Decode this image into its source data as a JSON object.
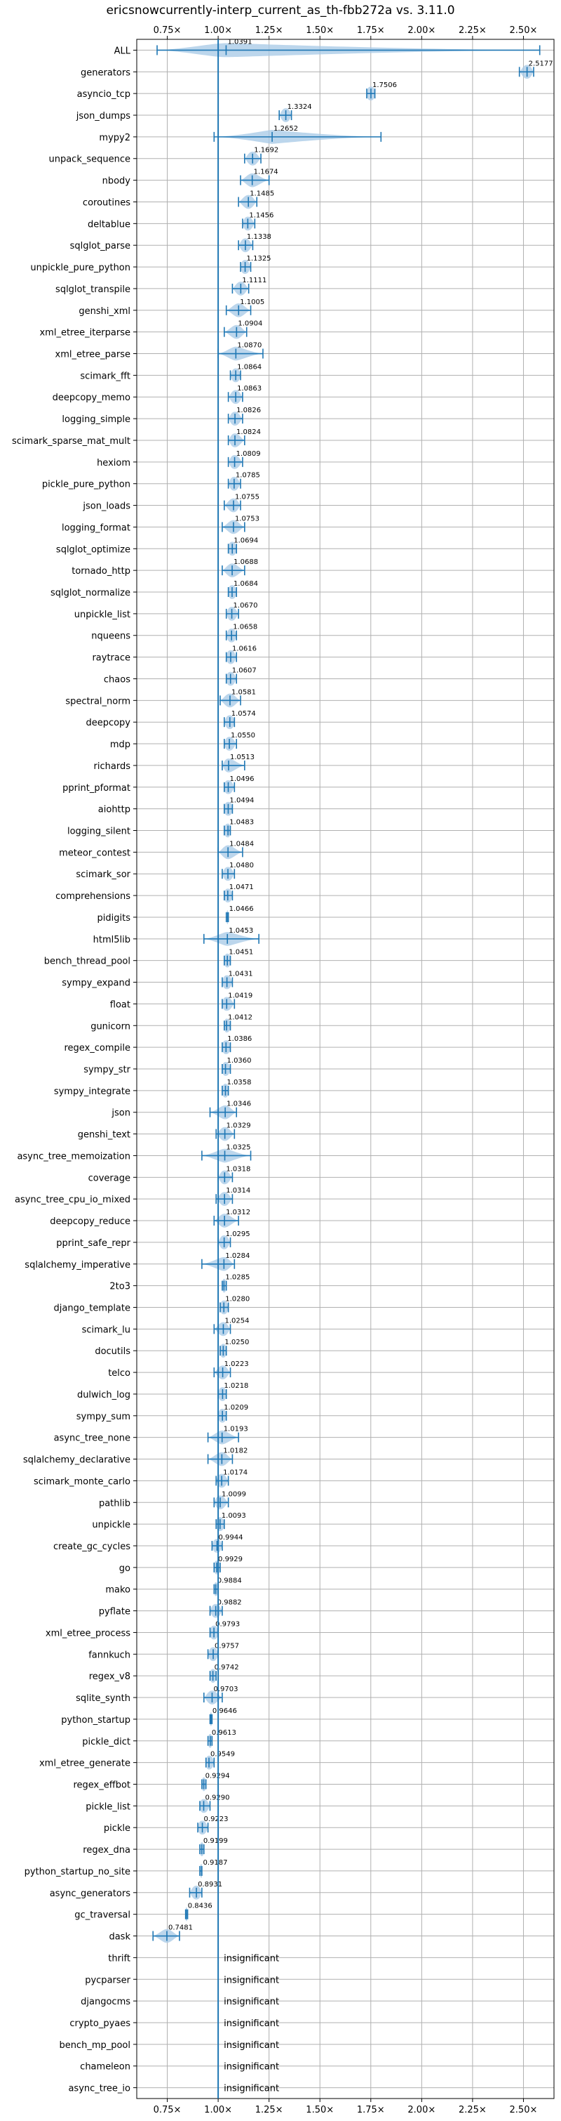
{
  "chart_data": {
    "type": "violin",
    "title": "ericsnowcurrently-interp_current_as_th-fbb272a vs. 3.11.0",
    "xlim": [
      0.6,
      2.65
    ],
    "xticks": [
      0.75,
      1.0,
      1.25,
      1.5,
      1.75,
      2.0,
      2.25,
      2.5
    ],
    "xtick_labels": [
      "0.75×",
      "1.00×",
      "1.25×",
      "1.50×",
      "1.75×",
      "2.00×",
      "2.25×",
      "2.50×"
    ],
    "reference_line": 1.0,
    "grid": true,
    "colors": {
      "line": "#1f77b4",
      "fill": "#a6c8e6",
      "grid": "#b0b0b0"
    },
    "insignificant_label": "insignificant",
    "rows": [
      {
        "name": "ALL",
        "label": "1.0391",
        "median": 1.0391,
        "min": 0.7,
        "max": 2.58,
        "spread": 0.07
      },
      {
        "name": "generators",
        "label": "2.5177",
        "median": 2.5177,
        "min": 2.48,
        "max": 2.55,
        "spread": 0.02
      },
      {
        "name": "asyncio_tcp",
        "label": "1.7506",
        "median": 1.7506,
        "min": 1.73,
        "max": 1.77,
        "spread": 0.02
      },
      {
        "name": "json_dumps",
        "label": "1.3324",
        "median": 1.3324,
        "min": 1.3,
        "max": 1.36,
        "spread": 0.02
      },
      {
        "name": "mypy2",
        "label": "1.2652",
        "median": 1.2652,
        "min": 0.98,
        "max": 1.8,
        "spread": 0.02
      },
      {
        "name": "unpack_sequence",
        "label": "1.1692",
        "median": 1.1692,
        "min": 1.13,
        "max": 1.21,
        "spread": 0.02
      },
      {
        "name": "nbody",
        "label": "1.1674",
        "median": 1.1674,
        "min": 1.11,
        "max": 1.25,
        "spread": 0.02
      },
      {
        "name": "coroutines",
        "label": "1.1485",
        "median": 1.1485,
        "min": 1.1,
        "max": 1.19,
        "spread": 0.02
      },
      {
        "name": "deltablue",
        "label": "1.1456",
        "median": 1.1456,
        "min": 1.12,
        "max": 1.18,
        "spread": 0.02
      },
      {
        "name": "sqlglot_parse",
        "label": "1.1338",
        "median": 1.1338,
        "min": 1.1,
        "max": 1.17,
        "spread": 0.02
      },
      {
        "name": "unpickle_pure_python",
        "label": "1.1325",
        "median": 1.1325,
        "min": 1.11,
        "max": 1.16,
        "spread": 0.02
      },
      {
        "name": "sqlglot_transpile",
        "label": "1.1111",
        "median": 1.1111,
        "min": 1.07,
        "max": 1.15,
        "spread": 0.02
      },
      {
        "name": "genshi_xml",
        "label": "1.1005",
        "median": 1.1005,
        "min": 1.04,
        "max": 1.16,
        "spread": 0.02
      },
      {
        "name": "xml_etree_iterparse",
        "label": "1.0904",
        "median": 1.0904,
        "min": 1.03,
        "max": 1.14,
        "spread": 0.02
      },
      {
        "name": "xml_etree_parse",
        "label": "1.0870",
        "median": 1.087,
        "min": 1.0,
        "max": 1.22,
        "spread": 0.02
      },
      {
        "name": "scimark_fft",
        "label": "1.0864",
        "median": 1.0864,
        "min": 1.06,
        "max": 1.11,
        "spread": 0.02
      },
      {
        "name": "deepcopy_memo",
        "label": "1.0863",
        "median": 1.0863,
        "min": 1.05,
        "max": 1.12,
        "spread": 0.02
      },
      {
        "name": "logging_simple",
        "label": "1.0826",
        "median": 1.0826,
        "min": 1.05,
        "max": 1.12,
        "spread": 0.02
      },
      {
        "name": "scimark_sparse_mat_mult",
        "label": "1.0824",
        "median": 1.0824,
        "min": 1.05,
        "max": 1.13,
        "spread": 0.02
      },
      {
        "name": "hexiom",
        "label": "1.0809",
        "median": 1.0809,
        "min": 1.05,
        "max": 1.12,
        "spread": 0.02
      },
      {
        "name": "pickle_pure_python",
        "label": "1.0785",
        "median": 1.0785,
        "min": 1.05,
        "max": 1.11,
        "spread": 0.02
      },
      {
        "name": "json_loads",
        "label": "1.0755",
        "median": 1.0755,
        "min": 1.03,
        "max": 1.11,
        "spread": 0.02
      },
      {
        "name": "logging_format",
        "label": "1.0753",
        "median": 1.0753,
        "min": 1.02,
        "max": 1.13,
        "spread": 0.02
      },
      {
        "name": "sqlglot_optimize",
        "label": "1.0694",
        "median": 1.0694,
        "min": 1.05,
        "max": 1.09,
        "spread": 0.02
      },
      {
        "name": "tornado_http",
        "label": "1.0688",
        "median": 1.0688,
        "min": 1.02,
        "max": 1.13,
        "spread": 0.02
      },
      {
        "name": "sqlglot_normalize",
        "label": "1.0684",
        "median": 1.0684,
        "min": 1.05,
        "max": 1.09,
        "spread": 0.02
      },
      {
        "name": "unpickle_list",
        "label": "1.0670",
        "median": 1.067,
        "min": 1.04,
        "max": 1.1,
        "spread": 0.02
      },
      {
        "name": "nqueens",
        "label": "1.0658",
        "median": 1.0658,
        "min": 1.04,
        "max": 1.09,
        "spread": 0.02
      },
      {
        "name": "raytrace",
        "label": "1.0616",
        "median": 1.0616,
        "min": 1.04,
        "max": 1.09,
        "spread": 0.02
      },
      {
        "name": "chaos",
        "label": "1.0607",
        "median": 1.0607,
        "min": 1.04,
        "max": 1.09,
        "spread": 0.02
      },
      {
        "name": "spectral_norm",
        "label": "1.0581",
        "median": 1.0581,
        "min": 1.01,
        "max": 1.11,
        "spread": 0.02
      },
      {
        "name": "deepcopy",
        "label": "1.0574",
        "median": 1.0574,
        "min": 1.03,
        "max": 1.08,
        "spread": 0.02
      },
      {
        "name": "mdp",
        "label": "1.0550",
        "median": 1.055,
        "min": 1.03,
        "max": 1.09,
        "spread": 0.02
      },
      {
        "name": "richards",
        "label": "1.0513",
        "median": 1.0513,
        "min": 1.02,
        "max": 1.13,
        "spread": 0.02
      },
      {
        "name": "pprint_pformat",
        "label": "1.0496",
        "median": 1.0496,
        "min": 1.03,
        "max": 1.08,
        "spread": 0.02
      },
      {
        "name": "aiohttp",
        "label": "1.0494",
        "median": 1.0494,
        "min": 1.03,
        "max": 1.07,
        "spread": 0.02
      },
      {
        "name": "logging_silent",
        "label": "1.0483",
        "median": 1.0483,
        "min": 1.03,
        "max": 1.06,
        "spread": 0.02
      },
      {
        "name": "meteor_contest",
        "label": "1.0484",
        "median": 1.0484,
        "min": 1.0,
        "max": 1.12,
        "spread": 0.02
      },
      {
        "name": "scimark_sor",
        "label": "1.0480",
        "median": 1.048,
        "min": 1.02,
        "max": 1.08,
        "spread": 0.02
      },
      {
        "name": "comprehensions",
        "label": "1.0471",
        "median": 1.0471,
        "min": 1.03,
        "max": 1.07,
        "spread": 0.02
      },
      {
        "name": "pidigits",
        "label": "1.0466",
        "median": 1.0466,
        "min": 1.04,
        "max": 1.05,
        "spread": 0.02
      },
      {
        "name": "html5lib",
        "label": "1.0453",
        "median": 1.0453,
        "min": 0.93,
        "max": 1.2,
        "spread": 0.02
      },
      {
        "name": "bench_thread_pool",
        "label": "1.0451",
        "median": 1.0451,
        "min": 1.03,
        "max": 1.06,
        "spread": 0.02
      },
      {
        "name": "sympy_expand",
        "label": "1.0431",
        "median": 1.0431,
        "min": 1.02,
        "max": 1.07,
        "spread": 0.02
      },
      {
        "name": "float",
        "label": "1.0419",
        "median": 1.0419,
        "min": 1.02,
        "max": 1.08,
        "spread": 0.02
      },
      {
        "name": "gunicorn",
        "label": "1.0412",
        "median": 1.0412,
        "min": 1.03,
        "max": 1.06,
        "spread": 0.02
      },
      {
        "name": "regex_compile",
        "label": "1.0386",
        "median": 1.0386,
        "min": 1.02,
        "max": 1.06,
        "spread": 0.02
      },
      {
        "name": "sympy_str",
        "label": "1.0360",
        "median": 1.036,
        "min": 1.02,
        "max": 1.06,
        "spread": 0.02
      },
      {
        "name": "sympy_integrate",
        "label": "1.0358",
        "median": 1.0358,
        "min": 1.02,
        "max": 1.05,
        "spread": 0.02
      },
      {
        "name": "json",
        "label": "1.0346",
        "median": 1.0346,
        "min": 0.96,
        "max": 1.09,
        "spread": 0.02
      },
      {
        "name": "genshi_text",
        "label": "1.0329",
        "median": 1.0329,
        "min": 0.99,
        "max": 1.08,
        "spread": 0.02
      },
      {
        "name": "async_tree_memoization",
        "label": "1.0325",
        "median": 1.0325,
        "min": 0.92,
        "max": 1.16,
        "spread": 0.02
      },
      {
        "name": "coverage",
        "label": "1.0318",
        "median": 1.0318,
        "min": 1.0,
        "max": 1.07,
        "spread": 0.02
      },
      {
        "name": "async_tree_cpu_io_mixed",
        "label": "1.0314",
        "median": 1.0314,
        "min": 0.99,
        "max": 1.07,
        "spread": 0.02
      },
      {
        "name": "deepcopy_reduce",
        "label": "1.0312",
        "median": 1.0312,
        "min": 0.98,
        "max": 1.1,
        "spread": 0.02
      },
      {
        "name": "pprint_safe_repr",
        "label": "1.0295",
        "median": 1.0295,
        "min": 1.0,
        "max": 1.06,
        "spread": 0.02
      },
      {
        "name": "sqlalchemy_imperative",
        "label": "1.0284",
        "median": 1.0284,
        "min": 0.92,
        "max": 1.08,
        "spread": 0.02
      },
      {
        "name": "2to3",
        "label": "1.0285",
        "median": 1.0285,
        "min": 1.02,
        "max": 1.04,
        "spread": 0.02
      },
      {
        "name": "django_template",
        "label": "1.0280",
        "median": 1.028,
        "min": 1.01,
        "max": 1.05,
        "spread": 0.02
      },
      {
        "name": "scimark_lu",
        "label": "1.0254",
        "median": 1.0254,
        "min": 0.98,
        "max": 1.06,
        "spread": 0.02
      },
      {
        "name": "docutils",
        "label": "1.0250",
        "median": 1.025,
        "min": 1.01,
        "max": 1.04,
        "spread": 0.02
      },
      {
        "name": "telco",
        "label": "1.0223",
        "median": 1.0223,
        "min": 0.98,
        "max": 1.06,
        "spread": 0.02
      },
      {
        "name": "dulwich_log",
        "label": "1.0218",
        "median": 1.0218,
        "min": 1.0,
        "max": 1.04,
        "spread": 0.02
      },
      {
        "name": "sympy_sum",
        "label": "1.0209",
        "median": 1.0209,
        "min": 1.0,
        "max": 1.04,
        "spread": 0.02
      },
      {
        "name": "async_tree_none",
        "label": "1.0193",
        "median": 1.0193,
        "min": 0.95,
        "max": 1.1,
        "spread": 0.02
      },
      {
        "name": "sqlalchemy_declarative",
        "label": "1.0182",
        "median": 1.0182,
        "min": 0.95,
        "max": 1.07,
        "spread": 0.02
      },
      {
        "name": "scimark_monte_carlo",
        "label": "1.0174",
        "median": 1.0174,
        "min": 0.99,
        "max": 1.05,
        "spread": 0.02
      },
      {
        "name": "pathlib",
        "label": "1.0099",
        "median": 1.0099,
        "min": 0.98,
        "max": 1.05,
        "spread": 0.02
      },
      {
        "name": "unpickle",
        "label": "1.0093",
        "median": 1.0093,
        "min": 0.99,
        "max": 1.03,
        "spread": 0.02
      },
      {
        "name": "create_gc_cycles",
        "label": "0.9944",
        "median": 0.9944,
        "min": 0.97,
        "max": 1.02,
        "spread": 0.02
      },
      {
        "name": "go",
        "label": "0.9929",
        "median": 0.9929,
        "min": 0.98,
        "max": 1.01,
        "spread": 0.02
      },
      {
        "name": "mako",
        "label": "0.9884",
        "median": 0.9884,
        "min": 0.98,
        "max": 1.0,
        "spread": 0.02
      },
      {
        "name": "pyflate",
        "label": "0.9882",
        "median": 0.9882,
        "min": 0.96,
        "max": 1.02,
        "spread": 0.02
      },
      {
        "name": "xml_etree_process",
        "label": "0.9793",
        "median": 0.9793,
        "min": 0.96,
        "max": 1.0,
        "spread": 0.02
      },
      {
        "name": "fannkuch",
        "label": "0.9757",
        "median": 0.9757,
        "min": 0.95,
        "max": 1.0,
        "spread": 0.02
      },
      {
        "name": "regex_v8",
        "label": "0.9742",
        "median": 0.9742,
        "min": 0.96,
        "max": 0.99,
        "spread": 0.02
      },
      {
        "name": "sqlite_synth",
        "label": "0.9703",
        "median": 0.9703,
        "min": 0.93,
        "max": 1.02,
        "spread": 0.02
      },
      {
        "name": "python_startup",
        "label": "0.9646",
        "median": 0.9646,
        "min": 0.96,
        "max": 0.97,
        "spread": 0.02
      },
      {
        "name": "pickle_dict",
        "label": "0.9613",
        "median": 0.9613,
        "min": 0.95,
        "max": 0.97,
        "spread": 0.02
      },
      {
        "name": "xml_etree_generate",
        "label": "0.9549",
        "median": 0.9549,
        "min": 0.94,
        "max": 0.98,
        "spread": 0.02
      },
      {
        "name": "regex_effbot",
        "label": "0.9294",
        "median": 0.9294,
        "min": 0.92,
        "max": 0.94,
        "spread": 0.02
      },
      {
        "name": "pickle_list",
        "label": "0.9290",
        "median": 0.929,
        "min": 0.91,
        "max": 0.96,
        "spread": 0.02
      },
      {
        "name": "pickle",
        "label": "0.9223",
        "median": 0.9223,
        "min": 0.9,
        "max": 0.95,
        "spread": 0.02
      },
      {
        "name": "regex_dna",
        "label": "0.9199",
        "median": 0.9199,
        "min": 0.91,
        "max": 0.93,
        "spread": 0.02
      },
      {
        "name": "python_startup_no_site",
        "label": "0.9187",
        "median": 0.9187,
        "min": 0.91,
        "max": 0.92,
        "spread": 0.02
      },
      {
        "name": "async_generators",
        "label": "0.8931",
        "median": 0.8931,
        "min": 0.86,
        "max": 0.92,
        "spread": 0.02
      },
      {
        "name": "gc_traversal",
        "label": "0.8436",
        "median": 0.8436,
        "min": 0.84,
        "max": 0.85,
        "spread": 0.02
      },
      {
        "name": "dask",
        "label": "0.7481",
        "median": 0.7481,
        "min": 0.68,
        "max": 0.81,
        "spread": 0.02
      },
      {
        "name": "thrift",
        "label": "",
        "insignificant": true
      },
      {
        "name": "pycparser",
        "label": "",
        "insignificant": true
      },
      {
        "name": "djangocms",
        "label": "",
        "insignificant": true
      },
      {
        "name": "crypto_pyaes",
        "label": "",
        "insignificant": true
      },
      {
        "name": "bench_mp_pool",
        "label": "",
        "insignificant": true
      },
      {
        "name": "chameleon",
        "label": "",
        "insignificant": true
      },
      {
        "name": "async_tree_io",
        "label": "",
        "insignificant": true
      }
    ]
  }
}
